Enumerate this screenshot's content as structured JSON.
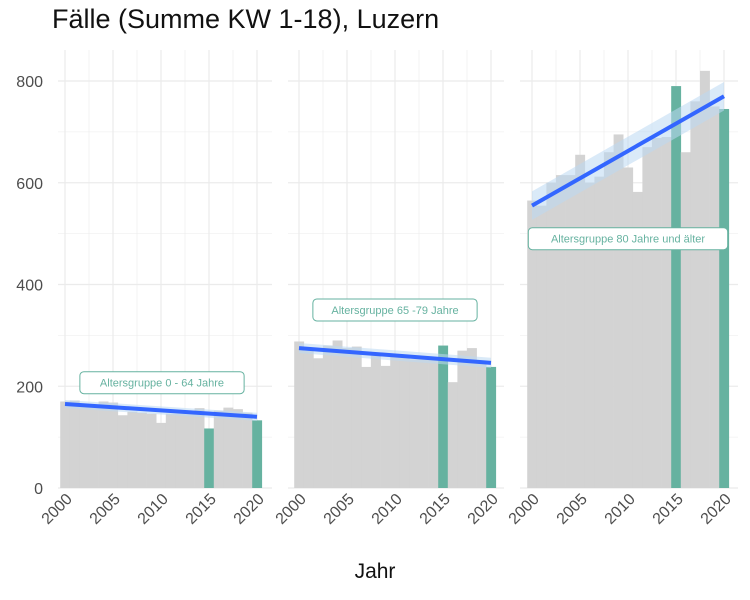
{
  "chart_data": {
    "type": "bar",
    "title": "Fälle (Summe KW 1-18), Luzern",
    "xlabel": "Jahr",
    "ylabel": "",
    "ylim": [
      0,
      850
    ],
    "y_ticks": [
      0,
      200,
      400,
      600,
      800
    ],
    "x_ticks": [
      2000,
      2005,
      2010,
      2015,
      2020
    ],
    "xlim": [
      1999.5,
      2020.5
    ],
    "grid": true,
    "colors": {
      "background_bars": "#d3d3d3",
      "highlight_bars": "#66b2a0",
      "trend_line": "#3366ff",
      "trend_band": "#bcd9f2",
      "label_text": "#66b2a0",
      "grid": "#ebebeb"
    },
    "panels": [
      {
        "label": "Altersgruppe 0 - 64 Jahre",
        "years": [
          2000,
          2001,
          2002,
          2003,
          2004,
          2005,
          2006,
          2007,
          2008,
          2009,
          2010,
          2011,
          2012,
          2013,
          2014,
          2015,
          2016,
          2017,
          2018,
          2019,
          2020
        ],
        "values": [
          170,
          172,
          165,
          163,
          170,
          168,
          143,
          150,
          148,
          146,
          128,
          146,
          146,
          145,
          157,
          117,
          152,
          158,
          155,
          148,
          133
        ],
        "highlight_years": [
          2015,
          2020
        ],
        "trend": {
          "start": 165,
          "end": 140,
          "band": 8
        }
      },
      {
        "label": "Altersgruppe 65 -79 Jahre",
        "years": [
          2000,
          2001,
          2002,
          2003,
          2004,
          2005,
          2006,
          2007,
          2008,
          2009,
          2010,
          2011,
          2012,
          2013,
          2014,
          2015,
          2016,
          2017,
          2018,
          2019,
          2020
        ],
        "values": [
          288,
          270,
          255,
          280,
          290,
          275,
          278,
          238,
          260,
          240,
          262,
          258,
          253,
          255,
          252,
          280,
          208,
          270,
          275,
          250,
          238
        ],
        "highlight_years": [
          2015,
          2020
        ],
        "trend": {
          "start": 275,
          "end": 246,
          "band": 10
        }
      },
      {
        "label": "Altersgruppe 80 Jahre und älter",
        "years": [
          2000,
          2001,
          2002,
          2003,
          2004,
          2005,
          2006,
          2007,
          2008,
          2009,
          2010,
          2011,
          2012,
          2013,
          2014,
          2015,
          2016,
          2017,
          2018,
          2019,
          2020
        ],
        "values": [
          565,
          555,
          600,
          615,
          615,
          655,
          600,
          612,
          660,
          695,
          630,
          582,
          670,
          688,
          690,
          790,
          660,
          760,
          820,
          750,
          745
        ],
        "highlight_years": [
          2015,
          2020
        ],
        "trend": {
          "start": 555,
          "end": 770,
          "band": 28
        }
      }
    ]
  }
}
